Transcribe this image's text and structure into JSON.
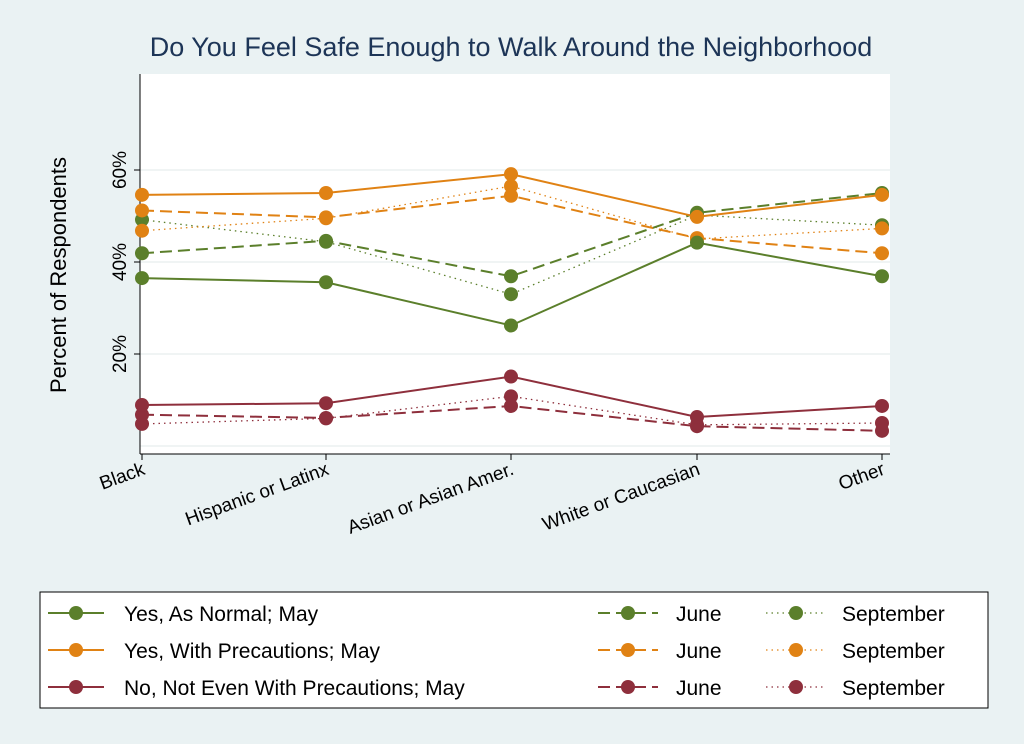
{
  "chart_data": {
    "type": "line",
    "title": "Do You Feel Safe Enough to Walk Around the Neighborhood",
    "ylabel": "Percent of Respondents",
    "xlabel": "",
    "categories": [
      "Black",
      "Hispanic or Latinx",
      "Asian or Asian Amer.",
      "White or Caucasian",
      "Other"
    ],
    "ylim": [
      0,
      80
    ],
    "yticks": [
      20,
      40,
      60
    ],
    "ytick_labels": [
      "20%",
      "40%",
      "60%"
    ],
    "grid": true,
    "legend_position": "bottom",
    "series": [
      {
        "name": "Yes, As Normal; May",
        "group": "Yes, As Normal",
        "month": "May",
        "color": "#5b7f2b",
        "dash": "solid",
        "values": [
          36.5,
          35.6,
          26.2,
          44.2,
          36.9
        ]
      },
      {
        "name": "June",
        "group": "Yes, As Normal",
        "month": "June",
        "color": "#5b7f2b",
        "dash": "dashed",
        "values": [
          41.9,
          44.6,
          36.9,
          50.7,
          55.0
        ]
      },
      {
        "name": "September",
        "group": "Yes, As Normal",
        "month": "September",
        "color": "#5b7f2b",
        "dash": "dotted",
        "values": [
          49.2,
          44.4,
          33.0,
          50.2,
          48.0
        ]
      },
      {
        "name": "Yes, With Precautions; May",
        "group": "Yes, With Precautions",
        "month": "May",
        "color": "#e08214",
        "dash": "solid",
        "values": [
          54.6,
          55.0,
          59.1,
          49.8,
          54.6
        ]
      },
      {
        "name": "June",
        "group": "Yes, With Precautions",
        "month": "June",
        "color": "#e08214",
        "dash": "dashed",
        "values": [
          51.2,
          49.7,
          54.4,
          45.2,
          41.9
        ]
      },
      {
        "name": "September",
        "group": "Yes, With Precautions",
        "month": "September",
        "color": "#e08214",
        "dash": "dotted",
        "values": [
          46.8,
          49.5,
          56.5,
          45.0,
          47.3
        ]
      },
      {
        "name": "No, Not Even With Precautions; May",
        "group": "No, Not Even With Precautions",
        "month": "May",
        "color": "#8e2f3c",
        "dash": "solid",
        "values": [
          8.9,
          9.3,
          15.1,
          6.3,
          8.7
        ]
      },
      {
        "name": "June",
        "group": "No, Not Even With Precautions",
        "month": "June",
        "color": "#8e2f3c",
        "dash": "dashed",
        "values": [
          6.8,
          6.1,
          8.7,
          4.3,
          3.3
        ]
      },
      {
        "name": "September",
        "group": "No, Not Even With Precautions",
        "month": "September",
        "color": "#8e2f3c",
        "dash": "dotted",
        "values": [
          4.8,
          6.0,
          10.8,
          4.6,
          5.0
        ]
      }
    ]
  }
}
